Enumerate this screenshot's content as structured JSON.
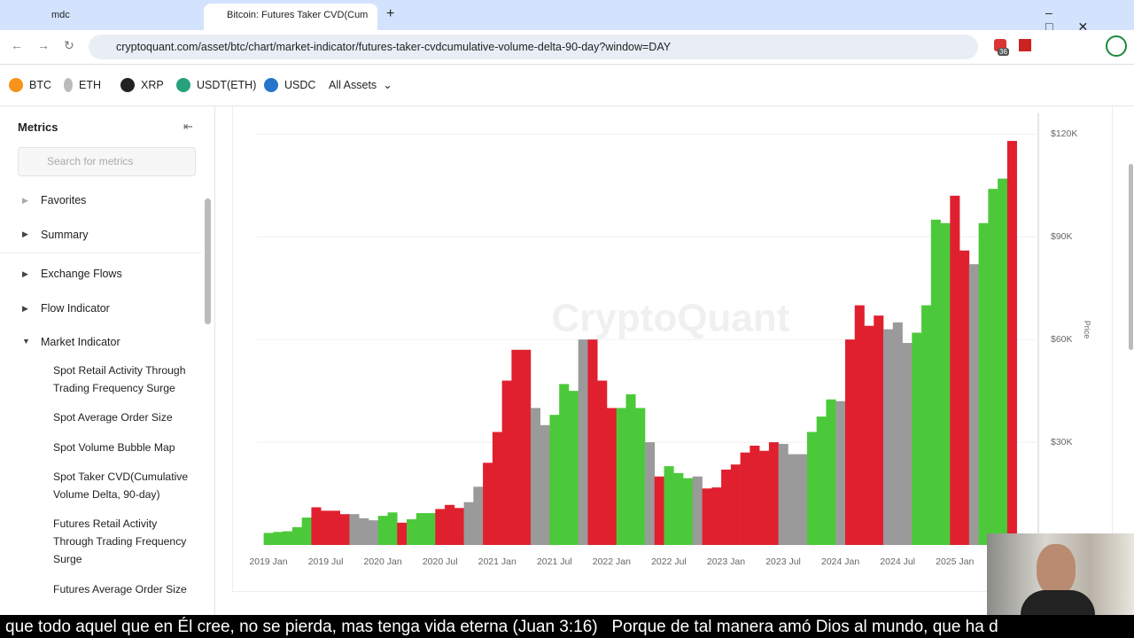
{
  "browser": {
    "tabs": [
      "mdc",
      "Bitcoin: Futures Taker CVD(Cum"
    ],
    "url": "cryptoquant.com/asset/btc/chart/market-indicator/futures-taker-cvdcumulative-volume-delta-90-day?window=DAY",
    "badge": "36"
  },
  "assets": [
    "BTC",
    "ETH",
    "XRP",
    "USDT(ETH)",
    "USDC",
    "All Assets"
  ],
  "sidebar": {
    "title": "Metrics",
    "search_placeholder": "Search for metrics",
    "items": [
      "Favorites",
      "Summary",
      "Exchange Flows",
      "Flow Indicator",
      "Market Indicator"
    ],
    "subitems": [
      "Spot Retail Activity Through Trading Frequency Surge",
      "Spot Average Order Size",
      "Spot Volume Bubble Map",
      "Spot Taker CVD(Cumulative Volume Delta, 90-day)",
      "Futures Retail Activity Through Trading Frequency Surge",
      "Futures Average Order Size"
    ]
  },
  "chart_data": {
    "type": "bar",
    "watermark": "CryptoQuant",
    "y_label": "Price",
    "categories": [
      "2019 Jan",
      null,
      null,
      null,
      null,
      null,
      "2019 Jul",
      null,
      null,
      null,
      null,
      null,
      "2020 Jan",
      null,
      null,
      null,
      null,
      null,
      "2020 Jul",
      null,
      null,
      null,
      null,
      null,
      "2021 Jan",
      null,
      null,
      null,
      null,
      null,
      "2021 Jul",
      null,
      null,
      null,
      null,
      null,
      "2022 Jan",
      null,
      null,
      null,
      null,
      null,
      "2022 Jul",
      null,
      null,
      null,
      null,
      null,
      "2023 Jan",
      null,
      null,
      null,
      null,
      null,
      "2023 Jul",
      null,
      null,
      null,
      null,
      null,
      "2024 Jan",
      null,
      null,
      null,
      null,
      null,
      "2024 Jul",
      null,
      null,
      null,
      null,
      null,
      "2025 Jan",
      null,
      null,
      null,
      null,
      null,
      null
    ],
    "values": [
      3500,
      3800,
      4000,
      5200,
      8000,
      11000,
      10000,
      10000,
      9000,
      9000,
      7800,
      7200,
      8500,
      9500,
      6500,
      7500,
      9300,
      9300,
      10500,
      11700,
      10800,
      12500,
      17000,
      24000,
      33000,
      48000,
      57000,
      57000,
      40000,
      35000,
      38000,
      47000,
      45000,
      60000,
      60000,
      48000,
      40000,
      40000,
      44000,
      40000,
      30000,
      20000,
      23000,
      21000,
      19500,
      20000,
      16500,
      16800,
      22000,
      23500,
      27000,
      29000,
      27500,
      30000,
      29500,
      26500,
      26500,
      33000,
      37500,
      42500,
      42000,
      60000,
      70000,
      64000,
      67000,
      63000,
      65000,
      59000,
      62000,
      70000,
      95000,
      94000,
      102000,
      86000,
      82000,
      94000,
      104000,
      107000,
      118000
    ],
    "colors": [
      "#4cc93a",
      "#4cc93a",
      "#4cc93a",
      "#4cc93a",
      "#4cc93a",
      "#e0202f",
      "#e0202f",
      "#e0202f",
      "#e0202f",
      "#9a9a9a",
      "#9a9a9a",
      "#9a9a9a",
      "#4cc93a",
      "#4cc93a",
      "#e0202f",
      "#4cc93a",
      "#4cc93a",
      "#4cc93a",
      "#e0202f",
      "#e0202f",
      "#e0202f",
      "#9a9a9a",
      "#9a9a9a",
      "#e0202f",
      "#e0202f",
      "#e0202f",
      "#e0202f",
      "#e0202f",
      "#9a9a9a",
      "#9a9a9a",
      "#4cc93a",
      "#4cc93a",
      "#4cc93a",
      "#9a9a9a",
      "#e0202f",
      "#e0202f",
      "#e0202f",
      "#4cc93a",
      "#4cc93a",
      "#4cc93a",
      "#9a9a9a",
      "#e0202f",
      "#4cc93a",
      "#4cc93a",
      "#4cc93a",
      "#9a9a9a",
      "#e0202f",
      "#e0202f",
      "#e0202f",
      "#e0202f",
      "#e0202f",
      "#e0202f",
      "#e0202f",
      "#e0202f",
      "#9a9a9a",
      "#9a9a9a",
      "#9a9a9a",
      "#4cc93a",
      "#4cc93a",
      "#4cc93a",
      "#9a9a9a",
      "#e0202f",
      "#e0202f",
      "#e0202f",
      "#e0202f",
      "#9a9a9a",
      "#9a9a9a",
      "#9a9a9a",
      "#4cc93a",
      "#4cc93a",
      "#4cc93a",
      "#4cc93a",
      "#e0202f",
      "#e0202f",
      "#9a9a9a",
      "#4cc93a",
      "#4cc93a",
      "#4cc93a",
      "#e0202f"
    ],
    "ylim": [
      0,
      125000
    ],
    "yticks": [
      {
        "value": 30000,
        "label": "$30K"
      },
      {
        "value": 60000,
        "label": "$60K"
      },
      {
        "value": 90000,
        "label": "$90K"
      },
      {
        "value": 120000,
        "label": "$120K"
      }
    ],
    "grid": true
  },
  "subtitle": "que todo aquel que en Él cree, no se pierda, mas tenga vida eterna (Juan 3:16)   Porque de tal manera amó Dios al mundo, que ha d"
}
